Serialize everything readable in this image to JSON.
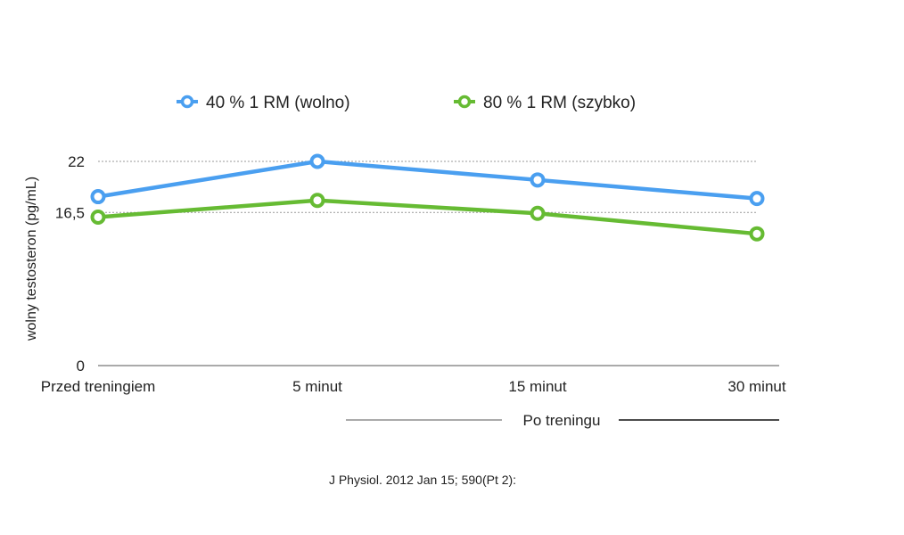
{
  "chart_data": {
    "type": "line",
    "categories": [
      "Przed treningiem",
      "5 minut",
      "15 minut",
      "30 minut"
    ],
    "series": [
      {
        "name": "40 % 1 RM (wolno)",
        "color": "#4a9ff0",
        "values": [
          18.2,
          22.0,
          20.0,
          18.0
        ]
      },
      {
        "name": "80 % 1 RM (szybko)",
        "color": "#66bb33",
        "values": [
          16.0,
          17.8,
          16.4,
          14.2
        ]
      }
    ],
    "ylabel": "wolny testosteron (pg/mL)",
    "y_ticks": [
      {
        "value": 0,
        "label": "0"
      },
      {
        "value": 16.5,
        "label": "16,5"
      },
      {
        "value": 22,
        "label": "22"
      }
    ],
    "ylim": [
      0,
      22
    ],
    "gridlines": "dotted at tick values",
    "legend_position": "top",
    "group_label": "Po treningu",
    "source": "J Physiol. 2012 Jan 15; 590(Pt 2):"
  }
}
